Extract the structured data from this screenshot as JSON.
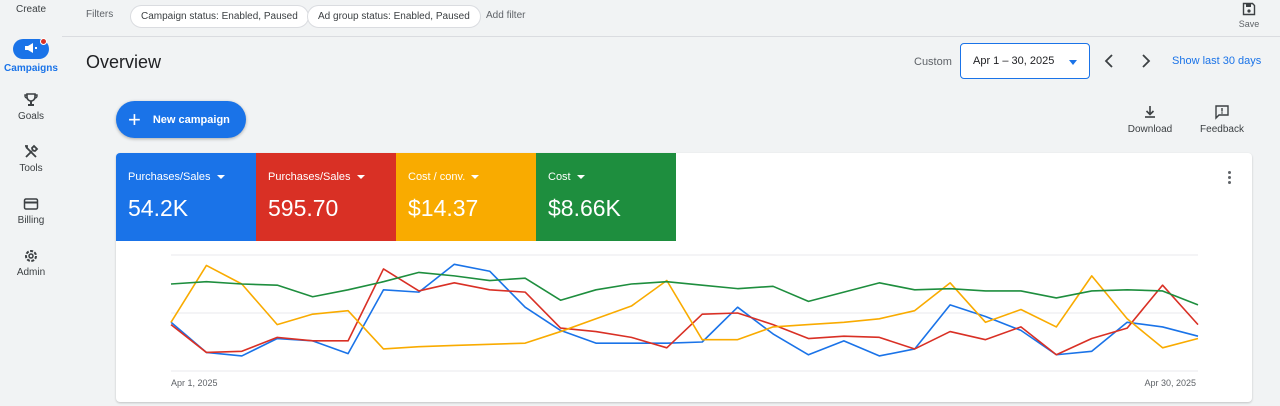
{
  "rail": {
    "create_label": "Create",
    "campaigns_label": "Campaigns",
    "goals_label": "Goals",
    "tools_label": "Tools",
    "billing_label": "Billing",
    "admin_label": "Admin"
  },
  "filters": {
    "label": "Filters",
    "chips": [
      "Campaign status: Enabled, Paused",
      "Ad group status: Enabled, Paused"
    ],
    "add_filter": "Add filter",
    "save_label": "Save"
  },
  "header": {
    "title": "Overview",
    "custom_label": "Custom",
    "date_range": "Apr 1 – 30, 2025",
    "show_last": "Show last 30 days"
  },
  "actions": {
    "new_campaign": "New campaign",
    "download": "Download",
    "feedback": "Feedback"
  },
  "colors": {
    "blue": "#1a73e8",
    "red": "#d93025",
    "yellow": "#f9ab00",
    "green": "#1e8e3e"
  },
  "metrics": [
    {
      "label": "Purchases/Sales",
      "value": "54.2K",
      "color": "#1a73e8"
    },
    {
      "label": "Purchases/Sales",
      "value": "595.70",
      "color": "#d93025"
    },
    {
      "label": "Cost / conv.",
      "value": "$14.37",
      "color": "#f9ab00"
    },
    {
      "label": "Cost",
      "value": "$8.66K",
      "color": "#1e8e3e"
    }
  ],
  "chart_data": {
    "type": "line",
    "x_start_label": "Apr 1, 2025",
    "x_end_label": "Apr 30, 2025",
    "x": [
      1,
      2,
      3,
      4,
      5,
      6,
      7,
      8,
      9,
      10,
      11,
      12,
      13,
      14,
      15,
      16,
      17,
      18,
      19,
      20,
      21,
      22,
      23,
      24,
      25,
      26,
      27,
      28,
      29,
      30
    ],
    "ylim": [
      0,
      100
    ],
    "grid": true,
    "series": [
      {
        "color": "#1a73e8",
        "values": [
          42,
          16,
          13,
          28,
          26,
          15,
          70,
          68,
          92,
          86,
          55,
          35,
          24,
          24,
          24,
          25,
          55,
          32,
          14,
          26,
          13,
          19,
          57,
          47,
          35,
          14,
          17,
          42,
          38,
          30
        ]
      },
      {
        "color": "#d93025",
        "values": [
          40,
          16,
          17,
          29,
          26,
          26,
          88,
          69,
          76,
          70,
          68,
          37,
          34,
          29,
          20,
          49,
          50,
          40,
          28,
          30,
          29,
          19,
          34,
          27,
          38,
          14,
          28,
          37,
          74,
          40
        ]
      },
      {
        "color": "#f9ab00",
        "values": [
          42,
          91,
          75,
          40,
          49,
          52,
          19,
          21,
          22,
          23,
          24,
          34,
          45,
          56,
          78,
          27,
          27,
          38,
          40,
          42,
          45,
          52,
          76,
          42,
          53,
          38,
          82,
          45,
          20,
          28
        ]
      },
      {
        "color": "#1e8e3e",
        "values": [
          75,
          77,
          75,
          74,
          64,
          70,
          77,
          85,
          82,
          78,
          80,
          61,
          70,
          75,
          77,
          74,
          71,
          73,
          60,
          68,
          76,
          70,
          71,
          69,
          69,
          63,
          69,
          70,
          69,
          57
        ]
      }
    ]
  }
}
